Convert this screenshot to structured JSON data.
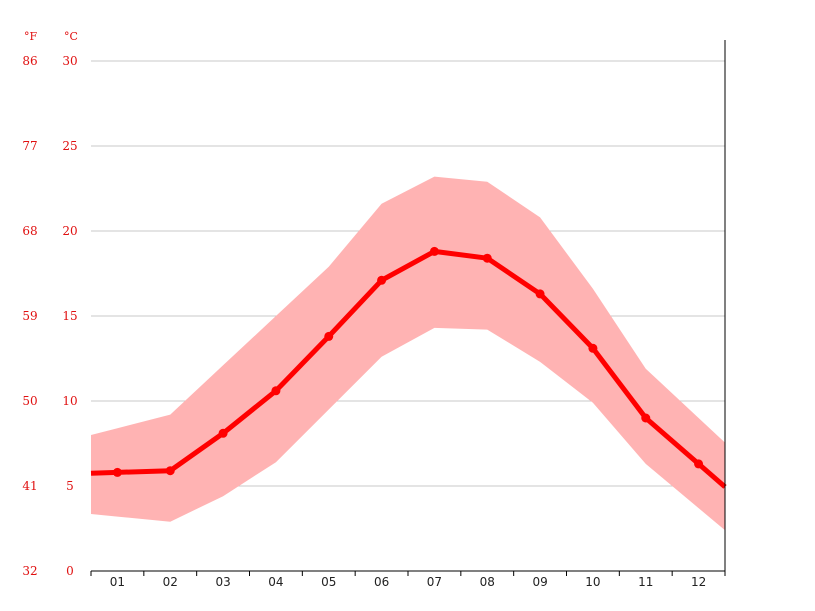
{
  "chart_data": {
    "type": "line",
    "units": {
      "fahrenheit": "°F",
      "celsius": "°C"
    },
    "y_ticks_celsius": [
      "0",
      "5",
      "10",
      "15",
      "20",
      "25",
      "30"
    ],
    "y_ticks_fahrenheit": [
      "32",
      "41",
      "50",
      "59",
      "68",
      "77",
      "86"
    ],
    "categories": [
      "01",
      "02",
      "03",
      "04",
      "05",
      "06",
      "07",
      "08",
      "09",
      "10",
      "11",
      "12"
    ],
    "ylim": [
      0,
      30
    ],
    "grid": true,
    "series": [
      {
        "values": [
          5.8,
          5.9,
          8.1,
          10.6,
          13.8,
          17.1,
          18.8,
          18.4,
          16.3,
          13.1,
          9.0,
          6.3
        ]
      }
    ],
    "band": {
      "upper": [
        8.4,
        9.2,
        12.1,
        15.0,
        17.9,
        21.6,
        23.2,
        22.9,
        20.8,
        16.6,
        11.9,
        9.0
      ],
      "lower": [
        3.2,
        2.9,
        4.4,
        6.4,
        9.5,
        12.6,
        14.3,
        14.2,
        12.3,
        9.9,
        6.3,
        3.7
      ]
    },
    "colors": {
      "line": "#ff0000",
      "band": "#ffb3b3",
      "grid": "#c8c8c8",
      "tick_label": "#e01010",
      "axis": "#000000"
    }
  }
}
